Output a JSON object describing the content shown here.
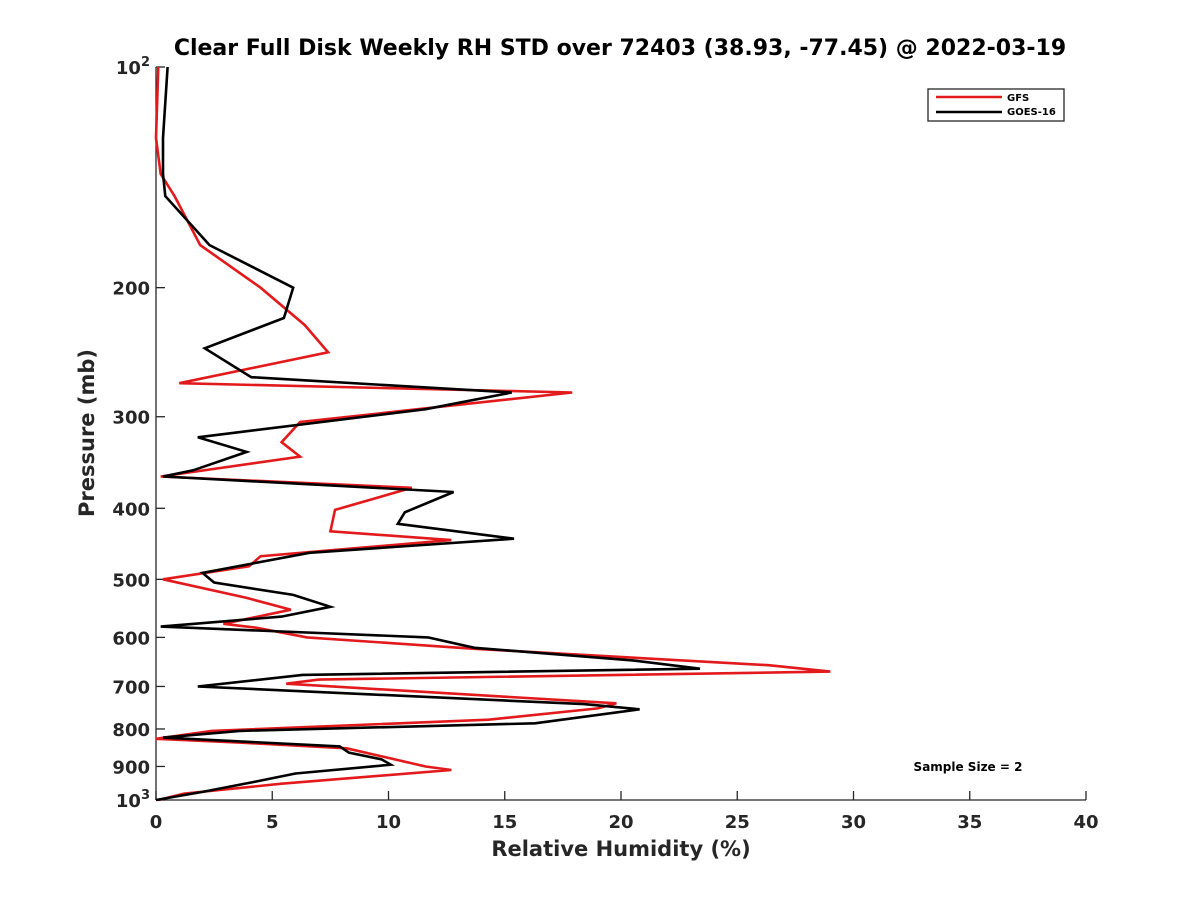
{
  "chart_data": {
    "type": "line",
    "title": "Clear Full Disk Weekly RH STD over 72403 (38.93, -77.45) @ 2022-03-19",
    "xlabel": "Relative Humidity (%)",
    "ylabel": "Pressure (mb)",
    "xlim": [
      0,
      40
    ],
    "ylim": [
      100,
      1000
    ],
    "yscale": "log",
    "y_reversed": true,
    "grid": false,
    "legend_position": "top-right",
    "x_ticks": [
      {
        "value": 0,
        "label": "0"
      },
      {
        "value": 5,
        "label": "5"
      },
      {
        "value": 10,
        "label": "10"
      },
      {
        "value": 15,
        "label": "15"
      },
      {
        "value": 20,
        "label": "20"
      },
      {
        "value": 25,
        "label": "25"
      },
      {
        "value": 30,
        "label": "30"
      },
      {
        "value": 35,
        "label": "35"
      },
      {
        "value": 40,
        "label": "40"
      }
    ],
    "y_ticks": [
      {
        "value": 100,
        "label": "10",
        "exp": "2"
      },
      {
        "value": 200,
        "label": "200"
      },
      {
        "value": 300,
        "label": "300"
      },
      {
        "value": 400,
        "label": "400"
      },
      {
        "value": 500,
        "label": "500"
      },
      {
        "value": 600,
        "label": "600"
      },
      {
        "value": 700,
        "label": "700"
      },
      {
        "value": 800,
        "label": "800"
      },
      {
        "value": 900,
        "label": "900"
      },
      {
        "value": 1000,
        "label": "10",
        "exp": "3"
      }
    ],
    "series": [
      {
        "name": "GFS",
        "color": "#e31a1c",
        "points": [
          [
            0.1,
            100
          ],
          [
            0.0,
            125
          ],
          [
            0.2,
            140
          ],
          [
            0.8,
            150
          ],
          [
            1.9,
            175
          ],
          [
            4.5,
            200
          ],
          [
            6.4,
            225
          ],
          [
            7.4,
            245
          ],
          [
            1.0,
            270
          ],
          [
            17.9,
            278
          ],
          [
            6.2,
            305
          ],
          [
            5.4,
            325
          ],
          [
            6.2,
            340
          ],
          [
            0.2,
            362
          ],
          [
            11.0,
            375
          ],
          [
            7.7,
            402
          ],
          [
            7.5,
            430
          ],
          [
            12.7,
            442
          ],
          [
            4.5,
            465
          ],
          [
            4.0,
            480
          ],
          [
            0.3,
            500
          ],
          [
            3.9,
            530
          ],
          [
            5.8,
            550
          ],
          [
            2.9,
            575
          ],
          [
            4.3,
            582
          ],
          [
            6.5,
            600
          ],
          [
            13.7,
            622
          ],
          [
            26.4,
            655
          ],
          [
            29.0,
            668
          ],
          [
            7.0,
            685
          ],
          [
            5.6,
            694
          ],
          [
            19.8,
            738
          ],
          [
            19.0,
            750
          ],
          [
            14.3,
            777
          ],
          [
            2.4,
            805
          ],
          [
            0.0,
            825
          ],
          [
            3.6,
            835
          ],
          [
            8.2,
            850
          ],
          [
            11.6,
            900
          ],
          [
            12.7,
            910
          ],
          [
            5.4,
            950
          ],
          [
            1.2,
            980
          ],
          [
            0.1,
            1000
          ]
        ]
      },
      {
        "name": "GOES-16",
        "color": "#000000",
        "points": [
          [
            0.5,
            100
          ],
          [
            0.3,
            125
          ],
          [
            0.3,
            140
          ],
          [
            0.4,
            150
          ],
          [
            2.3,
            175
          ],
          [
            5.9,
            200
          ],
          [
            5.5,
            220
          ],
          [
            2.1,
            242
          ],
          [
            4.1,
            265
          ],
          [
            15.3,
            278
          ],
          [
            11.6,
            293
          ],
          [
            1.8,
            320
          ],
          [
            3.9,
            335
          ],
          [
            1.6,
            355
          ],
          [
            0.3,
            362
          ],
          [
            12.8,
            380
          ],
          [
            10.7,
            405
          ],
          [
            10.4,
            420
          ],
          [
            15.4,
            440
          ],
          [
            6.6,
            460
          ],
          [
            2.0,
            490
          ],
          [
            2.5,
            505
          ],
          [
            5.9,
            525
          ],
          [
            7.5,
            545
          ],
          [
            5.4,
            562
          ],
          [
            0.2,
            580
          ],
          [
            11.7,
            600
          ],
          [
            13.7,
            620
          ],
          [
            20.5,
            645
          ],
          [
            23.4,
            662
          ],
          [
            6.3,
            675
          ],
          [
            1.8,
            700
          ],
          [
            18.4,
            740
          ],
          [
            20.8,
            752
          ],
          [
            16.3,
            786
          ],
          [
            3.6,
            805
          ],
          [
            0.3,
            822
          ],
          [
            7.9,
            845
          ],
          [
            8.3,
            862
          ],
          [
            9.7,
            880
          ],
          [
            10.1,
            895
          ],
          [
            6.0,
            920
          ],
          [
            4.2,
            945
          ],
          [
            2.0,
            975
          ],
          [
            0.0,
            1000
          ]
        ]
      }
    ],
    "annotations": [
      {
        "text": "Sample Size = 2"
      }
    ]
  }
}
